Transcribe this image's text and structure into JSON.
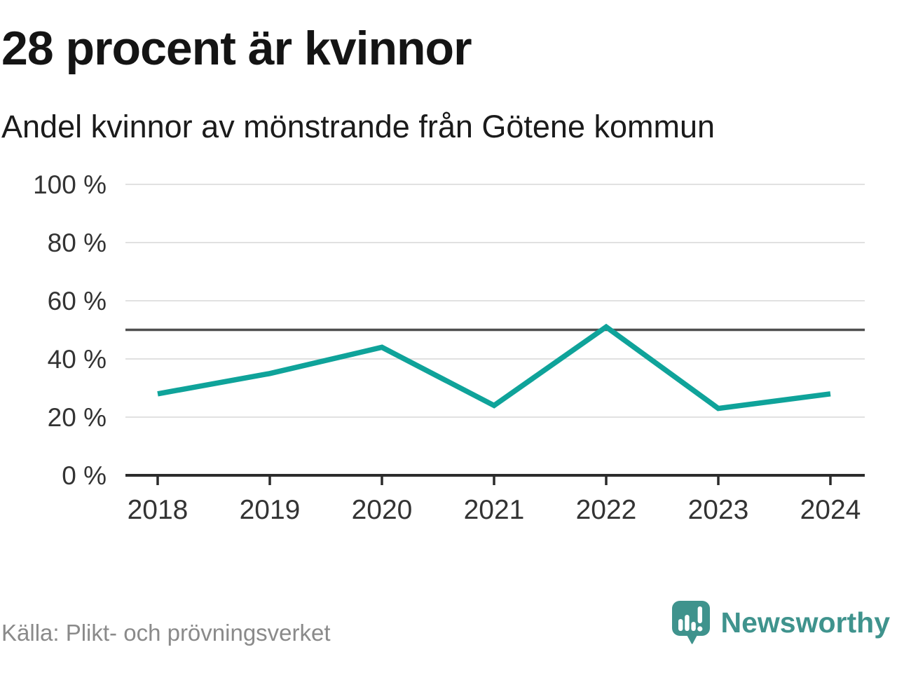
{
  "header": {
    "title": "28 procent är kvinnor",
    "subtitle": "Andel kvinnor av mönstrande från Götene kommun"
  },
  "footer": {
    "source": "Källa: Plikt- och prövningsverket",
    "brand": "Newsworthy"
  },
  "chart_data": {
    "type": "line",
    "title": "28 procent är kvinnor",
    "subtitle": "Andel kvinnor av mönstrande från Götene kommun",
    "categories": [
      "2018",
      "2019",
      "2020",
      "2021",
      "2022",
      "2023",
      "2024"
    ],
    "series": [
      {
        "name": "Andel kvinnor av mönstrande",
        "values": [
          28,
          35,
          44,
          24,
          51,
          23,
          28
        ]
      }
    ],
    "unit": "%",
    "ylim": [
      0,
      100
    ],
    "yticks": [
      0,
      20,
      40,
      60,
      80,
      100
    ],
    "ytick_labels": [
      "0 %",
      "20 %",
      "40 %",
      "60 %",
      "80 %",
      "100 %"
    ],
    "reference_line": 50,
    "grid": "horizontal",
    "legend": "none",
    "source": "Källa: Plikt- och prövningsverket",
    "colors": {
      "line": "#0fa39a",
      "reference": "#4f4f4f",
      "gridline": "#e1e1e1",
      "axis": "#2b2b2b",
      "tick_label": "#333333",
      "brand_teal": "#3f938d"
    }
  }
}
